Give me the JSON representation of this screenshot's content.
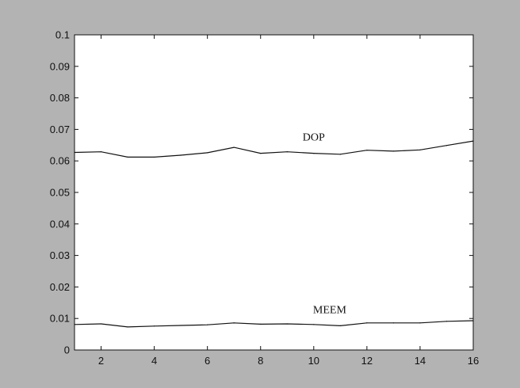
{
  "chart_data": {
    "type": "line",
    "title": "",
    "xlabel": "",
    "ylabel": "",
    "x": [
      1,
      2,
      3,
      4,
      5,
      6,
      7,
      8,
      9,
      10,
      11,
      12,
      13,
      14,
      15,
      16
    ],
    "xlim": [
      1,
      16
    ],
    "ylim": [
      0,
      0.1
    ],
    "x_ticks": [
      2,
      4,
      6,
      8,
      10,
      12,
      14,
      16
    ],
    "y_ticks": [
      0,
      0.01,
      0.02,
      0.03,
      0.04,
      0.05,
      0.06,
      0.07,
      0.08,
      0.09,
      0.1
    ],
    "x_tick_labels": [
      "2",
      "4",
      "6",
      "8",
      "10",
      "12",
      "14",
      "16"
    ],
    "y_tick_labels": [
      "0",
      "0.01",
      "0.02",
      "0.03",
      "0.04",
      "0.05",
      "0.06",
      "0.07",
      "0.08",
      "0.09",
      "0.1"
    ],
    "grid": false,
    "series": [
      {
        "name": "DOP",
        "color": "#111111",
        "values": [
          0.0627,
          0.0629,
          0.0612,
          0.0612,
          0.0618,
          0.0626,
          0.0643,
          0.0624,
          0.0629,
          0.0624,
          0.0621,
          0.0634,
          0.0631,
          0.0635,
          0.0649,
          0.0663
        ]
      },
      {
        "name": "MEEM",
        "color": "#111111",
        "values": [
          0.0081,
          0.0083,
          0.0073,
          0.0076,
          0.0078,
          0.008,
          0.0086,
          0.0082,
          0.0083,
          0.0081,
          0.0077,
          0.0086,
          0.0086,
          0.0086,
          0.0091,
          0.0093
        ]
      }
    ],
    "annotations": [
      {
        "text": "DOP",
        "x": 10.0,
        "y": 0.0665,
        "series": "DOP"
      },
      {
        "text": "MEEM",
        "x": 10.6,
        "y": 0.0117,
        "series": "MEEM"
      }
    ]
  }
}
